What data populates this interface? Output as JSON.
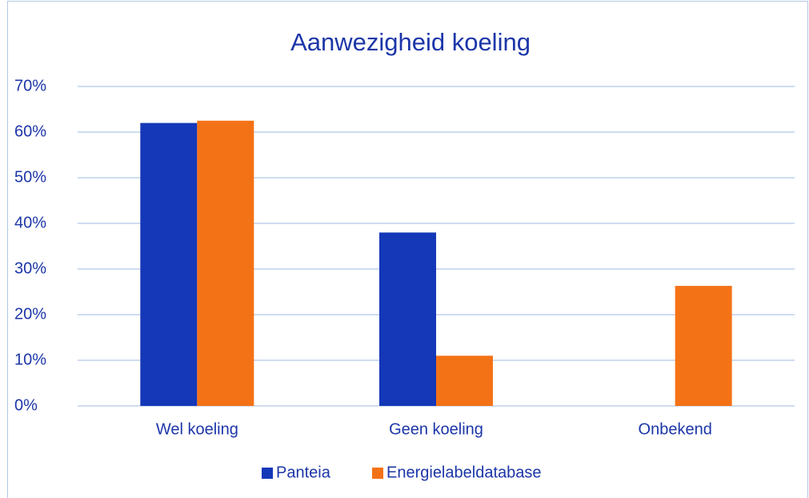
{
  "chart_data": {
    "type": "bar",
    "title": "Aanwezigheid koeling",
    "categories": [
      "Wel koeling",
      "Geen koeling",
      "Onbekend"
    ],
    "series": [
      {
        "name": "Panteia",
        "color": "#1438b8",
        "values": [
          62,
          38,
          0
        ]
      },
      {
        "name": "Energielabeldatabase",
        "color": "#f47216",
        "values": [
          62.5,
          11,
          26.3
        ]
      }
    ],
    "ylim": [
      0,
      70
    ],
    "yticks": [
      {
        "value": 0,
        "label": "0%"
      },
      {
        "value": 10,
        "label": "10%"
      },
      {
        "value": 20,
        "label": "20%"
      },
      {
        "value": 30,
        "label": "30%"
      },
      {
        "value": 40,
        "label": "40%"
      },
      {
        "value": 50,
        "label": "50%"
      },
      {
        "value": 60,
        "label": "60%"
      },
      {
        "value": 70,
        "label": "70%"
      }
    ],
    "grid": true,
    "legend": "bottom"
  }
}
